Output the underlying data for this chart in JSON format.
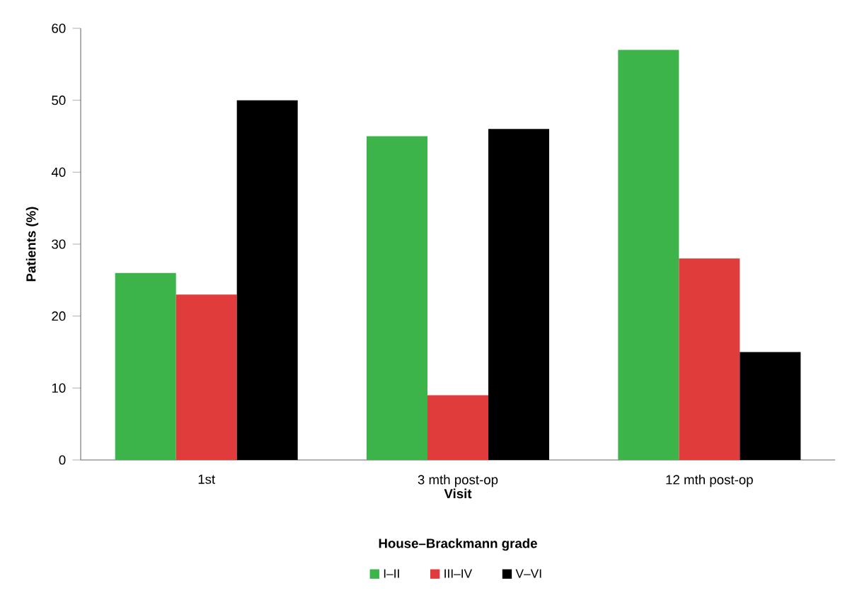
{
  "chart_data": {
    "type": "bar",
    "xlabel": "Visit",
    "ylabel": "Patients (%)",
    "legend_title": "House–Brackmann grade",
    "categories": [
      "1st",
      "3 mth post-op",
      "12 mth post-op"
    ],
    "series": [
      {
        "name": "I–II",
        "color": "#3cb44a",
        "values": [
          26,
          45,
          57
        ]
      },
      {
        "name": "III–IV",
        "color": "#e03c3c",
        "values": [
          23,
          9,
          28
        ]
      },
      {
        "name": "V–VI",
        "color": "#000000",
        "values": [
          50,
          46,
          15
        ]
      }
    ],
    "ylim": [
      0,
      60
    ],
    "yticks": [
      0,
      10,
      20,
      30,
      40,
      50,
      60
    ],
    "grid": false,
    "legend": "bottom"
  }
}
